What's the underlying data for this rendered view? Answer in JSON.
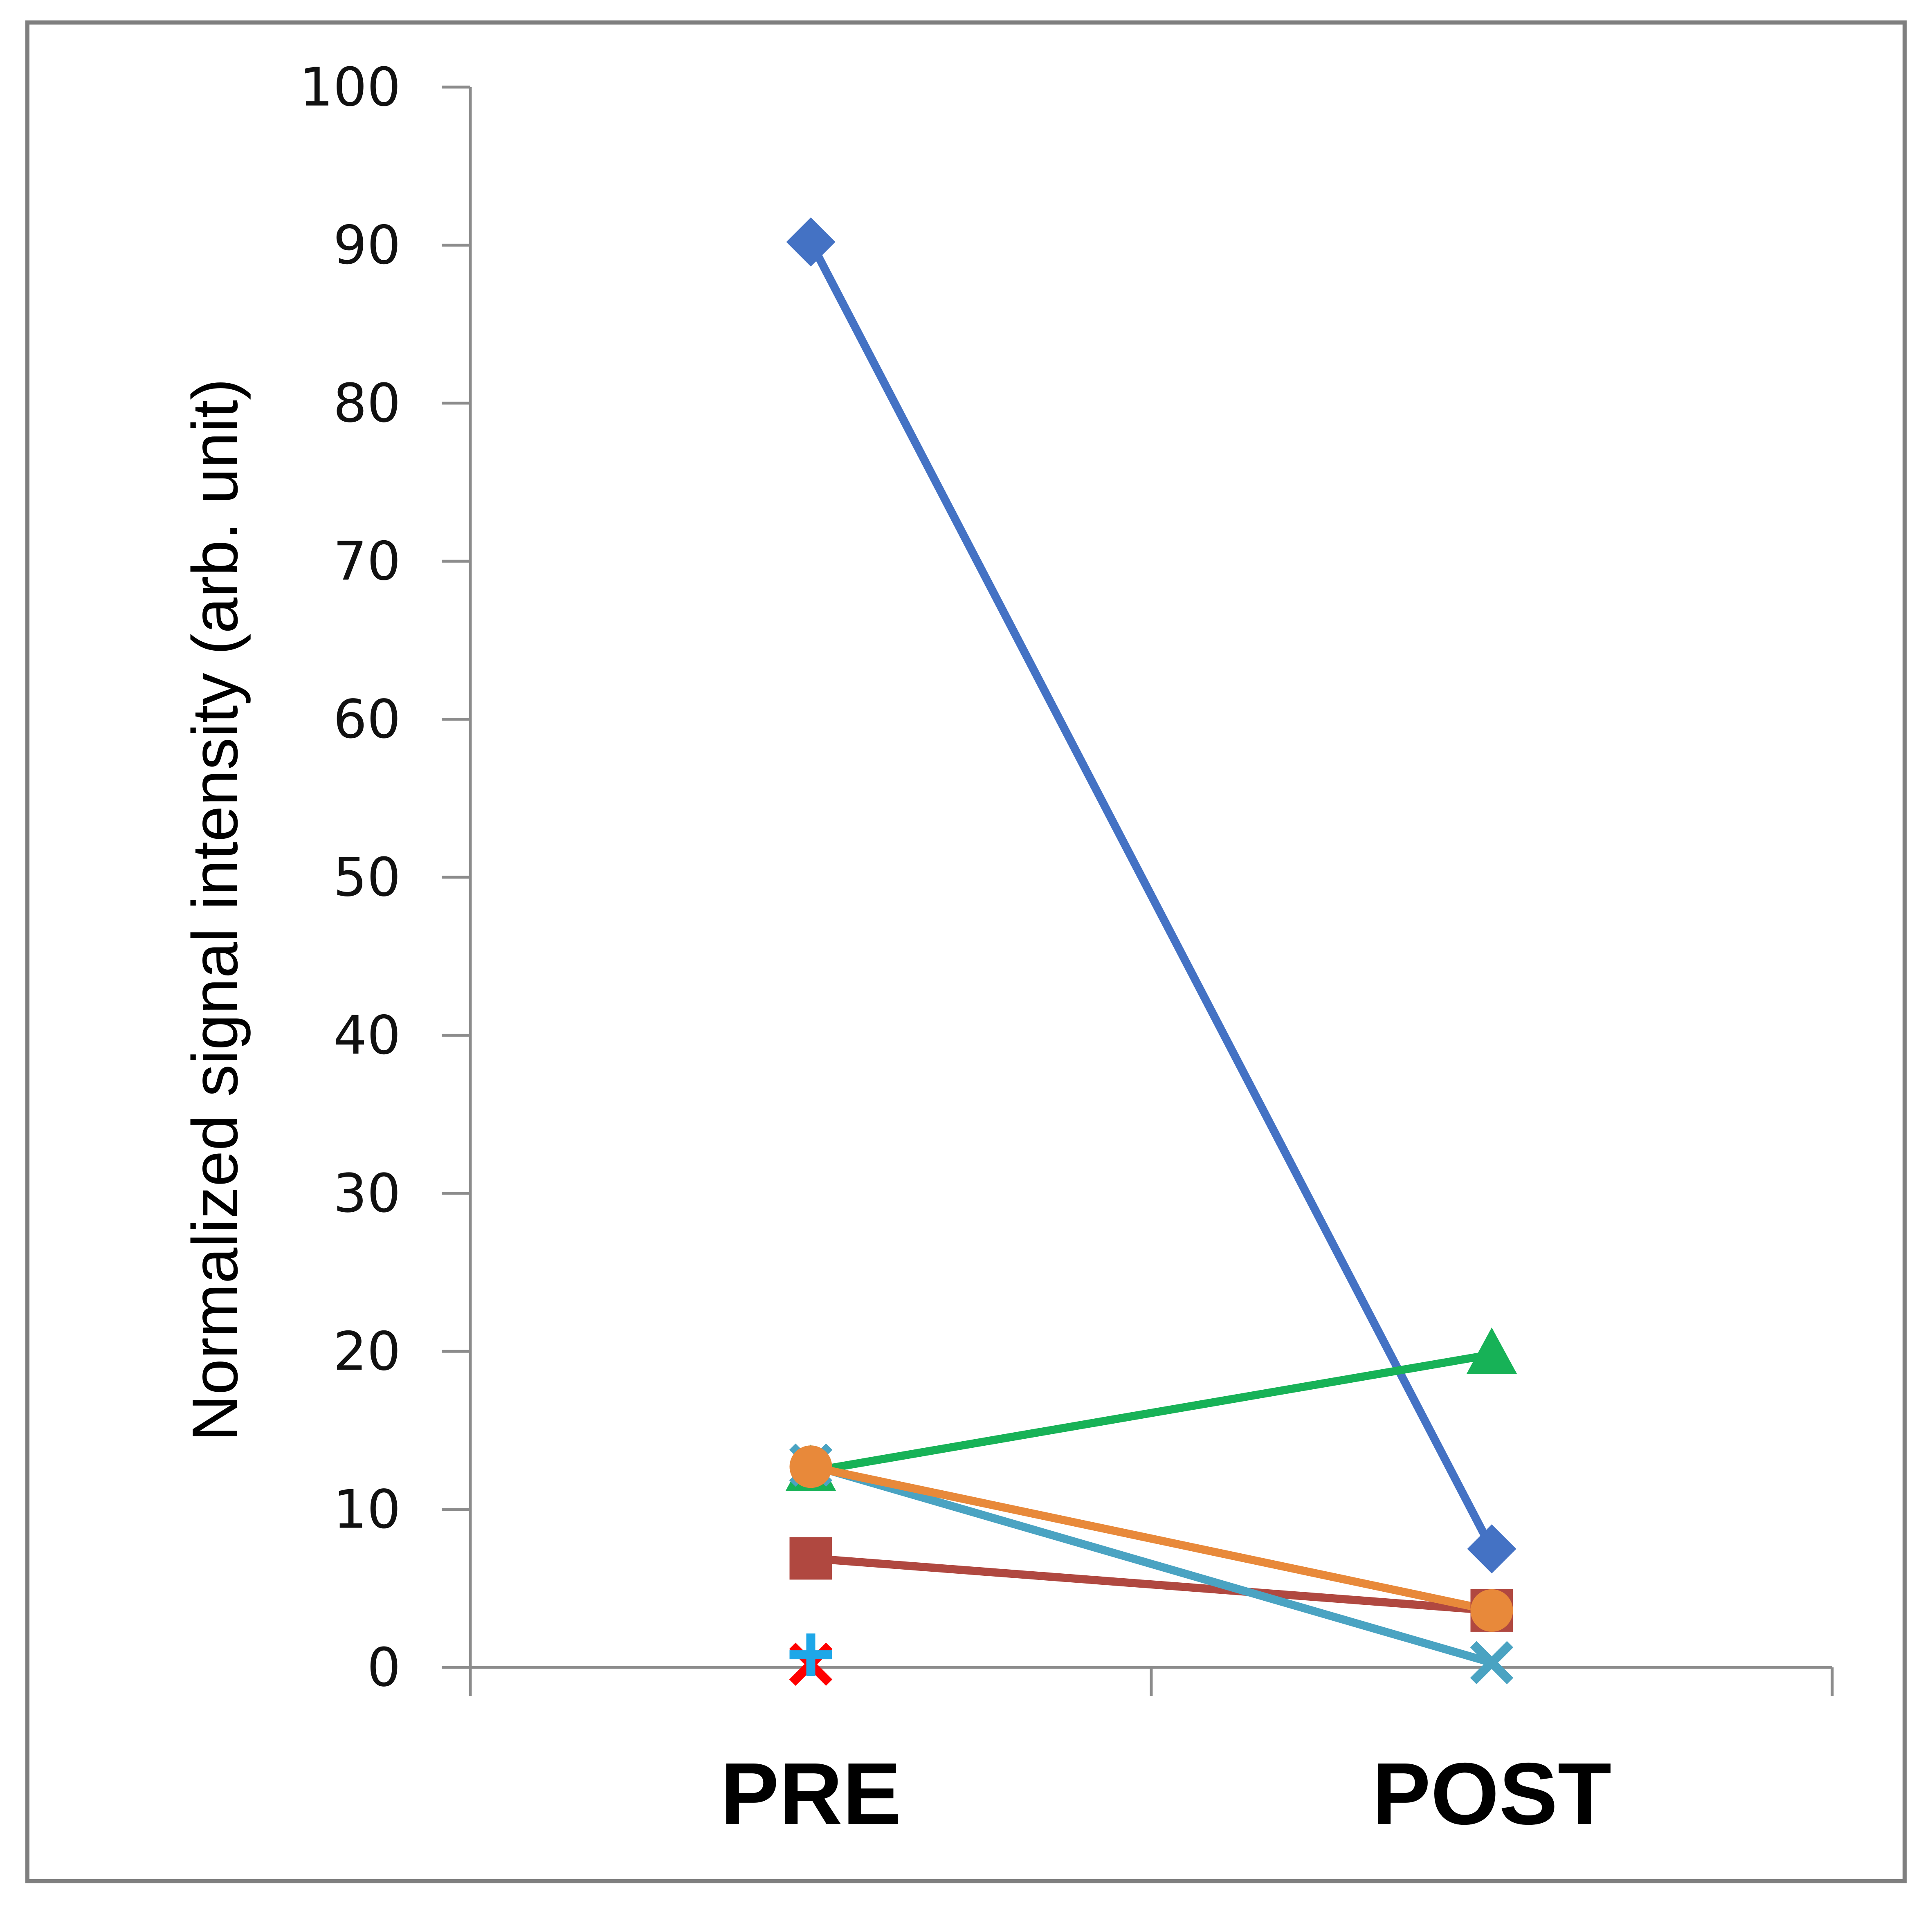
{
  "chart_data": {
    "type": "line",
    "title": "",
    "xlabel": "",
    "ylabel": "Normalized signal intensity (arb. unit)",
    "categories": [
      "PRE",
      "POST"
    ],
    "ylim": [
      0,
      100
    ],
    "yticks": [
      "0",
      "10",
      "20",
      "30",
      "40",
      "50",
      "60",
      "70",
      "80",
      "90",
      "100"
    ],
    "grid": false,
    "legend": "none",
    "series": [
      {
        "values": [
          90.2,
          7.5
        ],
        "color": "#4472c4",
        "marker": "diamond"
      },
      {
        "values": [
          6.9,
          3.6
        ],
        "color": "#b04840",
        "marker": "square"
      },
      {
        "values": [
          12.4,
          19.8
        ],
        "color": "#17b257",
        "marker": "triangle"
      },
      {
        "values": [
          12.8,
          0.3
        ],
        "color": "#4aa3c2",
        "marker": "x"
      },
      {
        "values": [
          12.7,
          3.6
        ],
        "color": "#e8893a",
        "marker": "circle"
      },
      {
        "values": [
          0.2,
          null
        ],
        "color": "#ff0000",
        "marker": "x"
      },
      {
        "values": [
          0.8,
          null
        ],
        "color": "#1ea7e8",
        "marker": "plus"
      }
    ]
  }
}
